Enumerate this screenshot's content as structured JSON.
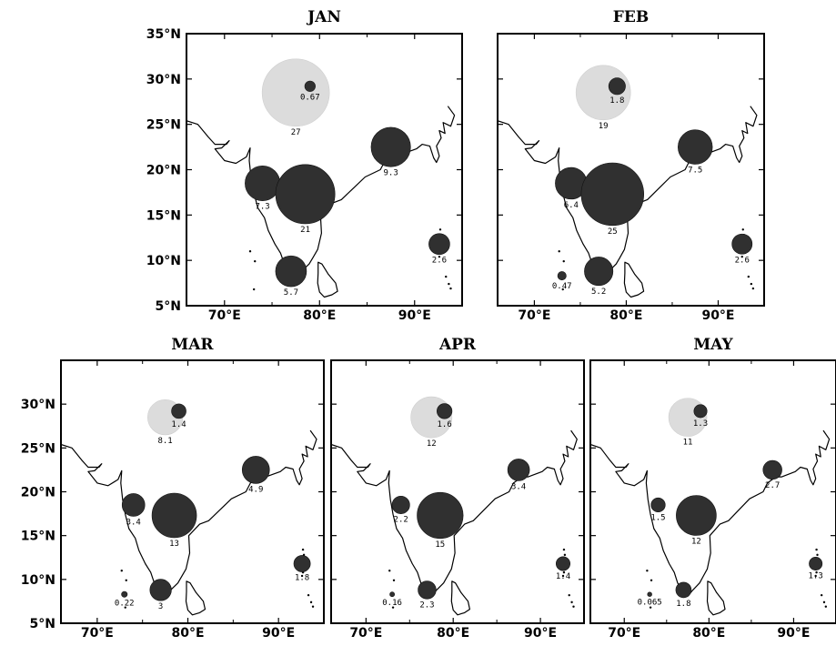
{
  "figure": {
    "lat_ticks": [
      "35°N",
      "30°N",
      "25°N",
      "20°N",
      "15°N",
      "10°N",
      "5°N"
    ],
    "lon_ticks": [
      "70°E",
      "80°E",
      "90°E"
    ],
    "colors": {
      "light_bubble": "#dcdcdc",
      "dark_bubble": "#303030",
      "frame": "#000000"
    }
  },
  "panels": [
    {
      "id": "jan",
      "title": "JAN",
      "show_lat_labels": true,
      "bubbles": [
        {
          "lon": 77.5,
          "lat": 28.5,
          "value": "27",
          "shade": "light",
          "label_pos": "below"
        },
        {
          "lon": 79.0,
          "lat": 29.2,
          "value": "0.67",
          "shade": "dark",
          "label_pos": "below"
        },
        {
          "lon": 74.0,
          "lat": 18.5,
          "value": "7.3",
          "shade": "dark",
          "label_pos": "below"
        },
        {
          "lon": 78.5,
          "lat": 17.3,
          "value": "21",
          "shade": "dark",
          "label_pos": "below"
        },
        {
          "lon": 87.5,
          "lat": 22.5,
          "value": "9.3",
          "shade": "dark",
          "label_pos": "below"
        },
        {
          "lon": 77.0,
          "lat": 8.8,
          "value": "5.7",
          "shade": "dark",
          "label_pos": "below"
        },
        {
          "lon": 92.6,
          "lat": 11.8,
          "value": "2.6",
          "shade": "dark",
          "label_pos": "below"
        }
      ]
    },
    {
      "id": "feb",
      "title": "FEB",
      "show_lat_labels": false,
      "bubbles": [
        {
          "lon": 77.5,
          "lat": 28.5,
          "value": "19",
          "shade": "light",
          "label_pos": "below"
        },
        {
          "lon": 79.0,
          "lat": 29.2,
          "value": "1.8",
          "shade": "dark",
          "label_pos": "below"
        },
        {
          "lon": 74.0,
          "lat": 18.5,
          "value": "6.4",
          "shade": "dark",
          "label_pos": "below"
        },
        {
          "lon": 78.5,
          "lat": 17.3,
          "value": "25",
          "shade": "dark",
          "label_pos": "below"
        },
        {
          "lon": 87.5,
          "lat": 22.5,
          "value": "7.5",
          "shade": "dark",
          "label_pos": "below"
        },
        {
          "lon": 77.0,
          "lat": 8.8,
          "value": "5.2",
          "shade": "dark",
          "label_pos": "below"
        },
        {
          "lon": 73.0,
          "lat": 8.3,
          "value": "0.47",
          "shade": "dark",
          "label_pos": "below"
        },
        {
          "lon": 92.6,
          "lat": 11.8,
          "value": "2.6",
          "shade": "dark",
          "label_pos": "below"
        }
      ]
    },
    {
      "id": "mar",
      "title": "MAR",
      "show_lat_labels": true,
      "bubbles": [
        {
          "lon": 77.5,
          "lat": 28.5,
          "value": "8.1",
          "shade": "light",
          "label_pos": "below"
        },
        {
          "lon": 79.0,
          "lat": 29.2,
          "value": "1.4",
          "shade": "dark",
          "label_pos": "below"
        },
        {
          "lon": 74.0,
          "lat": 18.5,
          "value": "3.4",
          "shade": "dark",
          "label_pos": "below"
        },
        {
          "lon": 78.5,
          "lat": 17.3,
          "value": "13",
          "shade": "dark",
          "label_pos": "below"
        },
        {
          "lon": 87.5,
          "lat": 22.5,
          "value": "4.9",
          "shade": "dark",
          "label_pos": "below"
        },
        {
          "lon": 77.0,
          "lat": 8.8,
          "value": "3",
          "shade": "dark",
          "label_pos": "below"
        },
        {
          "lon": 73.0,
          "lat": 8.3,
          "value": "0.22",
          "shade": "dark",
          "label_pos": "below"
        },
        {
          "lon": 92.6,
          "lat": 11.8,
          "value": "1.8",
          "shade": "dark",
          "label_pos": "below"
        }
      ]
    },
    {
      "id": "apr",
      "title": "APR",
      "show_lat_labels": false,
      "bubbles": [
        {
          "lon": 77.5,
          "lat": 28.5,
          "value": "12",
          "shade": "light",
          "label_pos": "below"
        },
        {
          "lon": 79.0,
          "lat": 29.2,
          "value": "1.6",
          "shade": "dark",
          "label_pos": "below"
        },
        {
          "lon": 74.0,
          "lat": 18.5,
          "value": "2.2",
          "shade": "dark",
          "label_pos": "below"
        },
        {
          "lon": 78.5,
          "lat": 17.3,
          "value": "15",
          "shade": "dark",
          "label_pos": "below"
        },
        {
          "lon": 87.5,
          "lat": 22.5,
          "value": "3.4",
          "shade": "dark",
          "label_pos": "below"
        },
        {
          "lon": 77.0,
          "lat": 8.8,
          "value": "2.3",
          "shade": "dark",
          "label_pos": "below"
        },
        {
          "lon": 73.0,
          "lat": 8.3,
          "value": "0.16",
          "shade": "dark",
          "label_pos": "below"
        },
        {
          "lon": 92.6,
          "lat": 11.8,
          "value": "1.4",
          "shade": "dark",
          "label_pos": "below"
        }
      ]
    },
    {
      "id": "may",
      "title": "MAY",
      "show_lat_labels": false,
      "bubbles": [
        {
          "lon": 77.5,
          "lat": 28.5,
          "value": "11",
          "shade": "light",
          "label_pos": "below"
        },
        {
          "lon": 79.0,
          "lat": 29.2,
          "value": "1.3",
          "shade": "dark",
          "label_pos": "below"
        },
        {
          "lon": 74.0,
          "lat": 18.5,
          "value": "1.5",
          "shade": "dark",
          "label_pos": "below"
        },
        {
          "lon": 78.5,
          "lat": 17.3,
          "value": "12",
          "shade": "dark",
          "label_pos": "below"
        },
        {
          "lon": 87.5,
          "lat": 22.5,
          "value": "2.7",
          "shade": "dark",
          "label_pos": "below"
        },
        {
          "lon": 77.0,
          "lat": 8.8,
          "value": "1.8",
          "shade": "dark",
          "label_pos": "below"
        },
        {
          "lon": 73.0,
          "lat": 8.3,
          "value": "0.065",
          "shade": "dark",
          "label_pos": "below"
        },
        {
          "lon": 92.6,
          "lat": 11.8,
          "value": "1.3",
          "shade": "dark",
          "label_pos": "below"
        }
      ]
    }
  ]
}
